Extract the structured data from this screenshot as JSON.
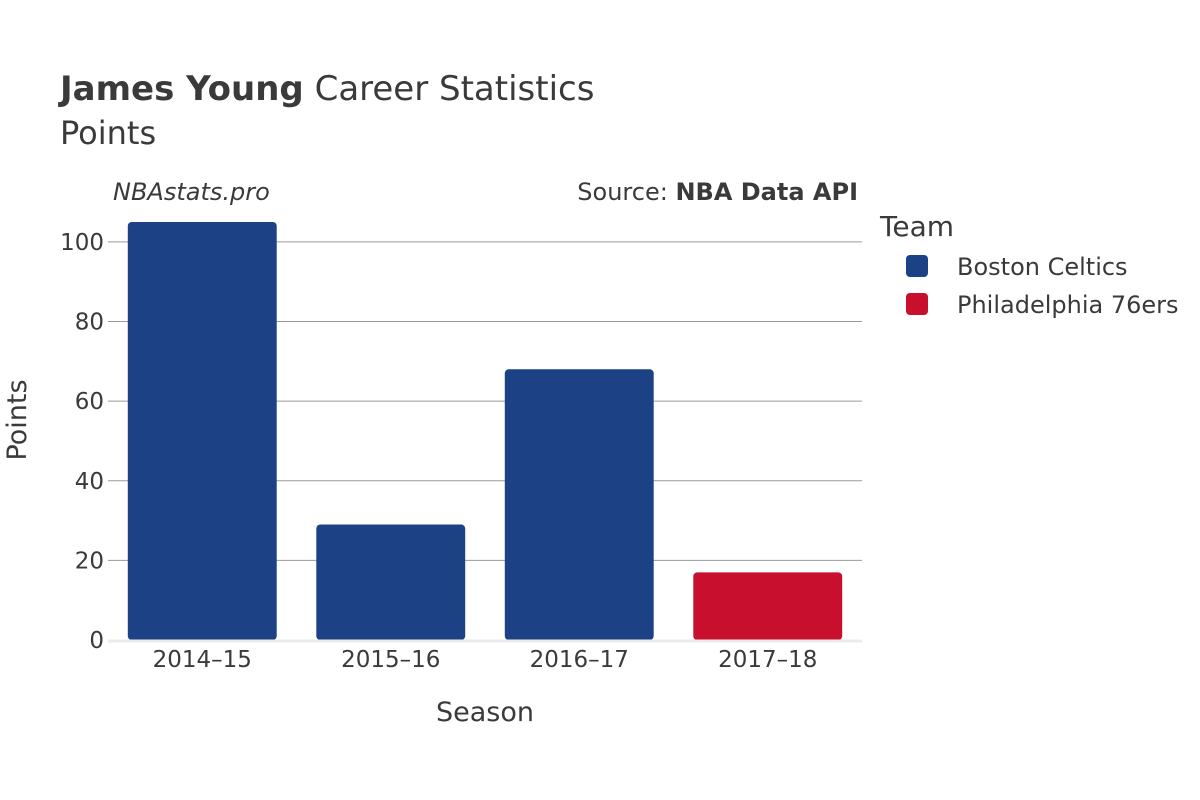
{
  "title": {
    "bold": "James Young",
    "rest": " Career Statistics",
    "subtitle": "Points"
  },
  "watermark": "NBAstats.pro",
  "source": {
    "prefix": "Source: ",
    "name": "NBA Data API"
  },
  "legend": {
    "title": "Team",
    "placement": "right",
    "items": [
      {
        "label": "Boston Celtics",
        "color": "#1c4185"
      },
      {
        "label": "Philadelphia 76ers",
        "color": "#c8102e"
      }
    ]
  },
  "chart_data": {
    "type": "bar",
    "xlabel": "Season",
    "ylabel": "Points",
    "categories": [
      "2014–15",
      "2015–16",
      "2016–17",
      "2017–18"
    ],
    "values": [
      105,
      29,
      68,
      17
    ],
    "teams": [
      "Boston Celtics",
      "Boston Celtics",
      "Boston Celtics",
      "Philadelphia 76ers"
    ],
    "ylim": [
      0,
      105
    ],
    "yticks": [
      0,
      20,
      40,
      60,
      80,
      100
    ],
    "grid": true,
    "colors": {
      "Boston Celtics": "#1c4185",
      "Philadelphia 76ers": "#c8102e"
    }
  }
}
